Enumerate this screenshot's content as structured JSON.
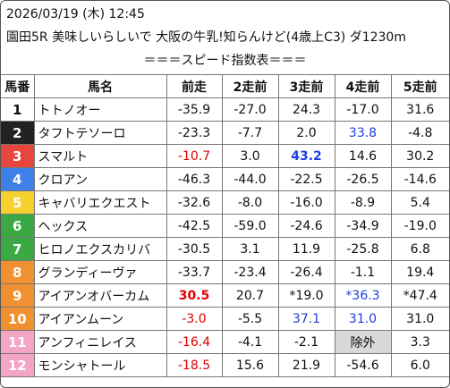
{
  "header": {
    "datetime": "2026/03/19 (木) 12:45",
    "race_title": "園田5R 美味しいらしいで 大阪の牛乳!知らんけど(4歳上C3) ダ1230m",
    "subtitle": "＝＝＝スピード指数表＝＝＝"
  },
  "columns": [
    "馬番",
    "馬名",
    "前走",
    "2走前",
    "3走前",
    "4走前",
    "5走前"
  ],
  "colors": {
    "red": "#e00000",
    "blue": "#1f3fe0",
    "gray_cell": "#d8d8d8"
  },
  "rows": [
    {
      "num": "1",
      "bg": "#ffffff",
      "fg": "#111111",
      "name": "トトノオー",
      "cells": [
        {
          "v": "-35.9"
        },
        {
          "v": "-27.0"
        },
        {
          "v": "24.3"
        },
        {
          "v": "-17.0"
        },
        {
          "v": "31.6"
        }
      ]
    },
    {
      "num": "2",
      "bg": "#222222",
      "fg": "#ffffff",
      "name": "タフトテソーロ",
      "cells": [
        {
          "v": "-23.3"
        },
        {
          "v": "-7.7"
        },
        {
          "v": "2.0"
        },
        {
          "v": "33.8",
          "c": "blue"
        },
        {
          "v": "-4.8"
        }
      ]
    },
    {
      "num": "3",
      "bg": "#e8453c",
      "fg": "#ffffff",
      "name": "スマルト",
      "cells": [
        {
          "v": "-10.7",
          "c": "red"
        },
        {
          "v": "3.0"
        },
        {
          "v": "43.2",
          "c": "blue",
          "b": true
        },
        {
          "v": "14.6"
        },
        {
          "v": "30.2"
        }
      ]
    },
    {
      "num": "4",
      "bg": "#3f7fe8",
      "fg": "#ffffff",
      "name": "クロアン",
      "cells": [
        {
          "v": "-46.3"
        },
        {
          "v": "-44.0"
        },
        {
          "v": "-22.5"
        },
        {
          "v": "-26.5"
        },
        {
          "v": "-14.6"
        }
      ]
    },
    {
      "num": "5",
      "bg": "#f6d02e",
      "fg": "#ffffff",
      "name": "キャバリエクエスト",
      "cells": [
        {
          "v": "-32.6"
        },
        {
          "v": "-8.0"
        },
        {
          "v": "-16.0"
        },
        {
          "v": "-8.9"
        },
        {
          "v": "5.4"
        }
      ]
    },
    {
      "num": "6",
      "bg": "#3aa843",
      "fg": "#ffffff",
      "name": "ヘックス",
      "cells": [
        {
          "v": "-42.5"
        },
        {
          "v": "-59.0"
        },
        {
          "v": "-24.6"
        },
        {
          "v": "-34.9"
        },
        {
          "v": "-19.0"
        }
      ]
    },
    {
      "num": "7",
      "bg": "#3aa843",
      "fg": "#ffffff",
      "name": "ヒロノエクスカリバ",
      "cells": [
        {
          "v": "-30.5"
        },
        {
          "v": "3.1"
        },
        {
          "v": "11.9"
        },
        {
          "v": "-25.8"
        },
        {
          "v": "6.8"
        }
      ]
    },
    {
      "num": "8",
      "bg": "#f09030",
      "fg": "#ffffff",
      "name": "グランディーヴァ",
      "cells": [
        {
          "v": "-33.7"
        },
        {
          "v": "-23.4"
        },
        {
          "v": "-26.4"
        },
        {
          "v": "-1.1"
        },
        {
          "v": "19.4"
        }
      ]
    },
    {
      "num": "9",
      "bg": "#f09030",
      "fg": "#ffffff",
      "name": "アイアンオバーカム",
      "cells": [
        {
          "v": "30.5",
          "c": "red",
          "b": true
        },
        {
          "v": "20.7"
        },
        {
          "v": "*19.0"
        },
        {
          "v": "*36.3",
          "c": "blue"
        },
        {
          "v": "*47.4"
        }
      ]
    },
    {
      "num": "10",
      "bg": "#f09030",
      "fg": "#ffffff",
      "name": "アイアンムーン",
      "cells": [
        {
          "v": "-3.0",
          "c": "red"
        },
        {
          "v": "-5.5"
        },
        {
          "v": "37.1",
          "c": "blue"
        },
        {
          "v": "31.0",
          "c": "blue"
        },
        {
          "v": "31.0"
        }
      ]
    },
    {
      "num": "11",
      "bg": "#f3a5c4",
      "fg": "#ffffff",
      "name": "アンフィニレイス",
      "cells": [
        {
          "v": "-16.4",
          "c": "red"
        },
        {
          "v": "-4.1"
        },
        {
          "v": "-2.1"
        },
        {
          "v": "除外",
          "g": true
        },
        {
          "v": "3.3"
        }
      ]
    },
    {
      "num": "12",
      "bg": "#f3a5c4",
      "fg": "#ffffff",
      "name": "モンシャトール",
      "cells": [
        {
          "v": "-18.5",
          "c": "red"
        },
        {
          "v": "15.6"
        },
        {
          "v": "21.9"
        },
        {
          "v": "-54.6"
        },
        {
          "v": "6.0"
        }
      ]
    }
  ]
}
